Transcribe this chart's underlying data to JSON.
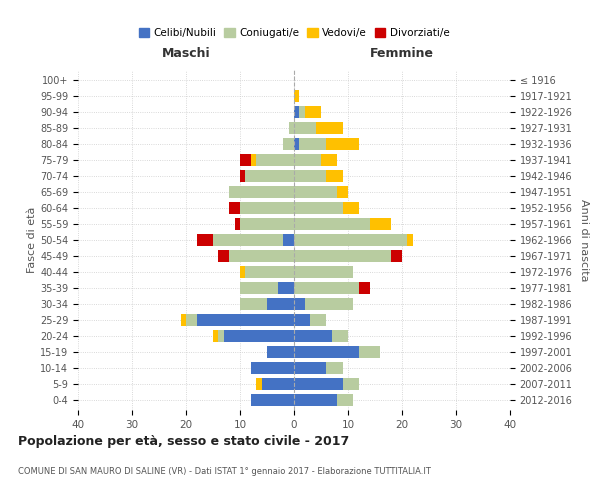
{
  "age_groups": [
    "0-4",
    "5-9",
    "10-14",
    "15-19",
    "20-24",
    "25-29",
    "30-34",
    "35-39",
    "40-44",
    "45-49",
    "50-54",
    "55-59",
    "60-64",
    "65-69",
    "70-74",
    "75-79",
    "80-84",
    "85-89",
    "90-94",
    "95-99",
    "100+"
  ],
  "birth_years": [
    "2012-2016",
    "2007-2011",
    "2002-2006",
    "1997-2001",
    "1992-1996",
    "1987-1991",
    "1982-1986",
    "1977-1981",
    "1972-1976",
    "1967-1971",
    "1962-1966",
    "1957-1961",
    "1952-1956",
    "1947-1951",
    "1942-1946",
    "1937-1941",
    "1932-1936",
    "1927-1931",
    "1922-1926",
    "1917-1921",
    "≤ 1916"
  ],
  "male": {
    "celibi": [
      8,
      6,
      8,
      5,
      13,
      18,
      5,
      3,
      0,
      0,
      2,
      0,
      0,
      0,
      0,
      0,
      0,
      0,
      0,
      0,
      0
    ],
    "coniugati": [
      0,
      0,
      0,
      0,
      1,
      2,
      5,
      7,
      9,
      12,
      13,
      10,
      10,
      12,
      9,
      7,
      2,
      1,
      0,
      0,
      0
    ],
    "vedovi": [
      0,
      1,
      0,
      0,
      1,
      1,
      0,
      0,
      1,
      0,
      0,
      0,
      0,
      0,
      0,
      1,
      0,
      0,
      0,
      0,
      0
    ],
    "divorziati": [
      0,
      0,
      0,
      0,
      0,
      0,
      0,
      0,
      0,
      2,
      3,
      1,
      2,
      0,
      1,
      2,
      0,
      0,
      0,
      0,
      0
    ]
  },
  "female": {
    "nubili": [
      8,
      9,
      6,
      12,
      7,
      3,
      2,
      0,
      0,
      0,
      0,
      0,
      0,
      0,
      0,
      0,
      1,
      0,
      1,
      0,
      0
    ],
    "coniugate": [
      3,
      3,
      3,
      4,
      3,
      3,
      9,
      12,
      11,
      18,
      21,
      14,
      9,
      8,
      6,
      5,
      5,
      4,
      1,
      0,
      0
    ],
    "vedove": [
      0,
      0,
      0,
      0,
      0,
      0,
      0,
      0,
      0,
      0,
      1,
      4,
      3,
      2,
      3,
      3,
      6,
      5,
      3,
      1,
      0
    ],
    "divorziate": [
      0,
      0,
      0,
      0,
      0,
      0,
      0,
      2,
      0,
      2,
      0,
      0,
      0,
      0,
      0,
      0,
      0,
      0,
      0,
      0,
      0
    ]
  },
  "colors": {
    "celibi": "#4472c4",
    "coniugati": "#b8cca0",
    "vedovi": "#ffc000",
    "divorziati": "#cc0000"
  },
  "title": "Popolazione per età, sesso e stato civile - 2017",
  "subtitle": "COMUNE DI SAN MAURO DI SALINE (VR) - Dati ISTAT 1° gennaio 2017 - Elaborazione TUTTITALIA.IT",
  "xlabel_left": "Maschi",
  "xlabel_right": "Femmine",
  "ylabel_left": "Fasce di età",
  "ylabel_right": "Anni di nascita",
  "xlim": 40,
  "background_color": "#ffffff",
  "grid_color": "#cccccc"
}
